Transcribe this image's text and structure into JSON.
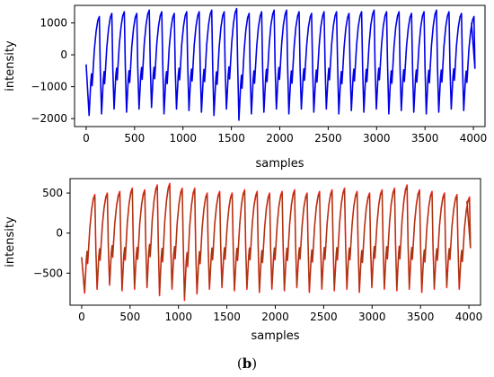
{
  "caption": {
    "open": "(",
    "letter": "b",
    "close": ")"
  },
  "chart_data": [
    {
      "type": "line",
      "xlabel": "samples",
      "ylabel": "intensity",
      "xlim": [
        -120,
        4120
      ],
      "ylim": [
        -2250,
        1550
      ],
      "xticks": [
        0,
        500,
        1000,
        1500,
        2000,
        2500,
        3000,
        3500,
        4000
      ],
      "yticks": [
        -2000,
        -1000,
        0,
        1000
      ],
      "grid": false,
      "series": [
        {
          "color": "#0000e6",
          "x_range": [
            0,
            3980
          ],
          "cycles": 31,
          "period_samples": 129,
          "cycle_minima": [
            -1900,
            -1850,
            -1700,
            -1800,
            -1700,
            -1650,
            -1850,
            -1700,
            -1750,
            -1800,
            -1900,
            -1700,
            -2050,
            -1850,
            -1800,
            -1700,
            -1850,
            -1700,
            -1800,
            -1700,
            -1850,
            -1750,
            -1800,
            -1700,
            -1850,
            -1750,
            -1800,
            -1850,
            -1800,
            -1700,
            -1750
          ],
          "cycle_maxima": [
            1200,
            1300,
            1350,
            1300,
            1400,
            1350,
            1300,
            1350,
            1350,
            1400,
            1350,
            1450,
            1300,
            1350,
            1400,
            1400,
            1350,
            1300,
            1350,
            1350,
            1300,
            1350,
            1400,
            1350,
            1350,
            1300,
            1350,
            1400,
            1350,
            1300,
            1200
          ],
          "end_value": 1000
        }
      ]
    },
    {
      "type": "line",
      "xlabel": "samples",
      "ylabel": "intensity",
      "xlim": [
        -120,
        4120
      ],
      "ylim": [
        -900,
        680
      ],
      "xticks": [
        0,
        500,
        1000,
        1500,
        2000,
        2500,
        3000,
        3500,
        4000
      ],
      "yticks": [
        -500,
        0,
        500
      ],
      "grid": false,
      "series": [
        {
          "color": "#ff2020",
          "x_range": [
            0,
            3980
          ],
          "cycles": 31,
          "period_samples": 129,
          "cycle_minima": [
            -750,
            -700,
            -650,
            -720,
            -700,
            -680,
            -780,
            -700,
            -840,
            -760,
            -700,
            -680,
            -720,
            -700,
            -740,
            -700,
            -720,
            -680,
            -740,
            -700,
            -720,
            -700,
            -740,
            -680,
            -700,
            -720,
            -700,
            -740,
            -700,
            -680,
            -700
          ],
          "cycle_maxima": [
            480,
            500,
            520,
            560,
            540,
            600,
            620,
            560,
            560,
            500,
            520,
            500,
            540,
            520,
            500,
            520,
            540,
            500,
            520,
            540,
            560,
            520,
            500,
            540,
            560,
            600,
            540,
            520,
            500,
            480,
            450
          ],
          "end_value": 400
        },
        {
          "color": "#9c3a10",
          "x_range": [
            0,
            3980
          ],
          "cycles": 31,
          "period_samples": 129,
          "cycle_minima": [
            -720,
            -680,
            -630,
            -700,
            -680,
            -660,
            -760,
            -680,
            -800,
            -740,
            -680,
            -660,
            -700,
            -680,
            -720,
            -680,
            -700,
            -660,
            -720,
            -680,
            -700,
            -680,
            -720,
            -660,
            -680,
            -700,
            -680,
            -720,
            -680,
            -660,
            -680
          ],
          "cycle_maxima": [
            460,
            480,
            500,
            540,
            520,
            580,
            600,
            540,
            540,
            480,
            500,
            480,
            520,
            500,
            480,
            500,
            520,
            480,
            500,
            520,
            540,
            500,
            480,
            520,
            540,
            580,
            520,
            500,
            480,
            460,
            430
          ],
          "end_value": 390
        }
      ]
    }
  ]
}
